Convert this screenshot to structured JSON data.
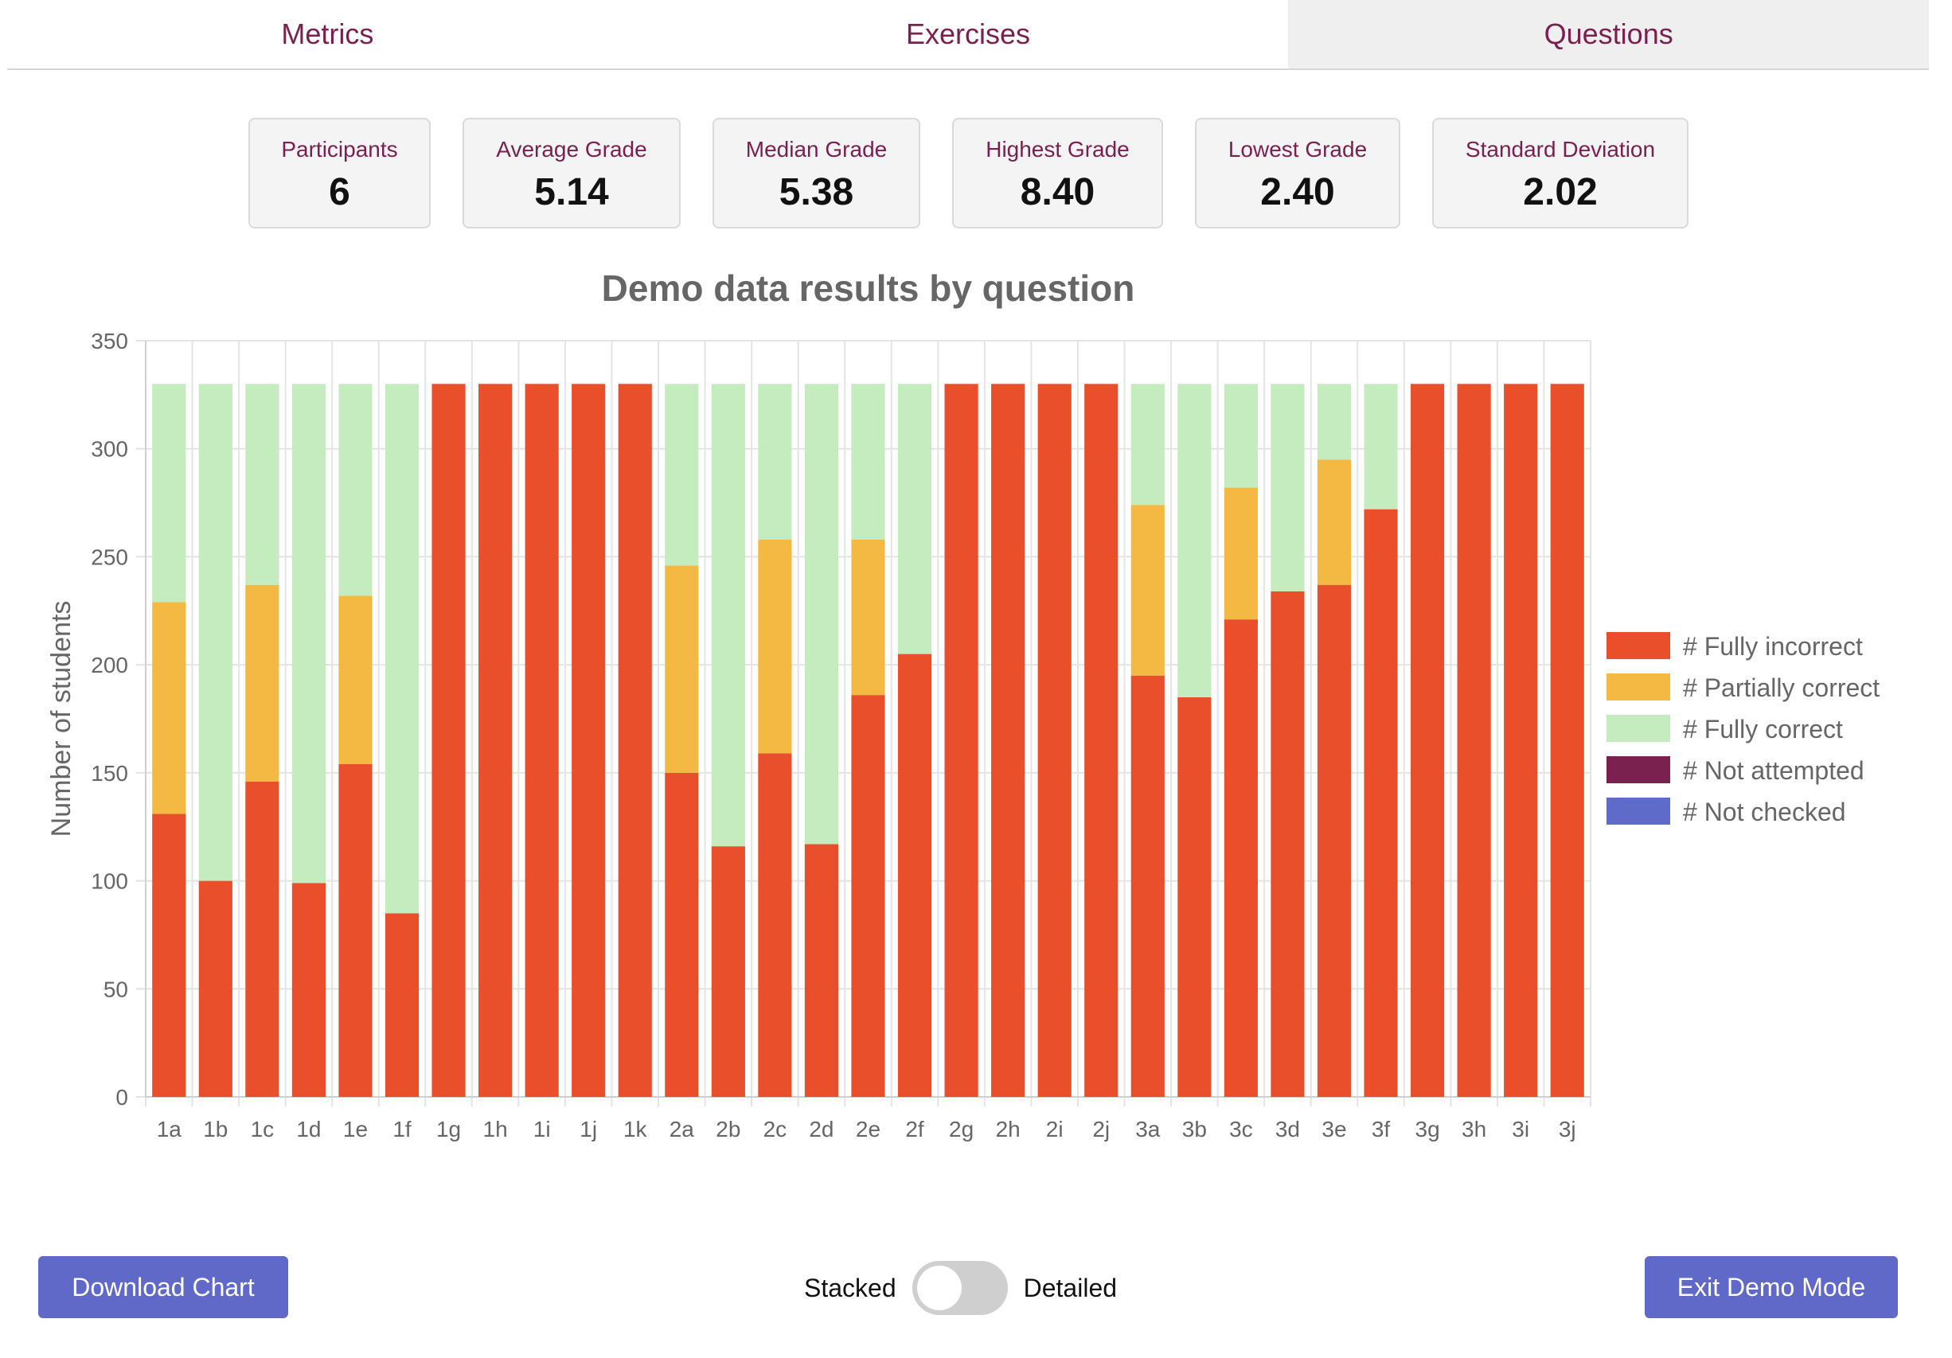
{
  "tabs": [
    {
      "label": "Metrics",
      "active": false
    },
    {
      "label": "Exercises",
      "active": false
    },
    {
      "label": "Questions",
      "active": true
    }
  ],
  "stats": [
    {
      "label": "Participants",
      "value": "6"
    },
    {
      "label": "Average Grade",
      "value": "5.14"
    },
    {
      "label": "Median Grade",
      "value": "5.38"
    },
    {
      "label": "Highest Grade",
      "value": "8.40"
    },
    {
      "label": "Lowest Grade",
      "value": "2.40"
    },
    {
      "label": "Standard Deviation",
      "value": "2.02"
    }
  ],
  "chart_data": {
    "type": "bar",
    "stacked": true,
    "title": "Demo data results by question",
    "xlabel": "",
    "ylabel": "Number of students",
    "ylim": [
      0,
      350
    ],
    "yticks": [
      0,
      50,
      100,
      150,
      200,
      250,
      300,
      350
    ],
    "grid": true,
    "legend_position": "right",
    "categories": [
      "1a",
      "1b",
      "1c",
      "1d",
      "1e",
      "1f",
      "1g",
      "1h",
      "1i",
      "1j",
      "1k",
      "2a",
      "2b",
      "2c",
      "2d",
      "2e",
      "2f",
      "2g",
      "2h",
      "2i",
      "2j",
      "3a",
      "3b",
      "3c",
      "3d",
      "3e",
      "3f",
      "3g",
      "3h",
      "3i",
      "3j"
    ],
    "series": [
      {
        "name": "# Fully incorrect",
        "color": "#e84f2a",
        "values": [
          131,
          100,
          146,
          99,
          154,
          85,
          330,
          330,
          330,
          330,
          330,
          150,
          116,
          159,
          117,
          186,
          205,
          330,
          330,
          330,
          330,
          195,
          185,
          221,
          234,
          237,
          272,
          330,
          330,
          330,
          330
        ]
      },
      {
        "name": "# Partially correct",
        "color": "#f4b942",
        "values": [
          98,
          0,
          91,
          0,
          78,
          0,
          0,
          0,
          0,
          0,
          0,
          96,
          0,
          99,
          0,
          72,
          0,
          0,
          0,
          0,
          0,
          79,
          0,
          61,
          0,
          58,
          0,
          0,
          0,
          0,
          0
        ]
      },
      {
        "name": "# Fully correct",
        "color": "#c5ecbe",
        "values": [
          101,
          230,
          93,
          231,
          98,
          245,
          0,
          0,
          0,
          0,
          0,
          84,
          214,
          72,
          213,
          72,
          125,
          0,
          0,
          0,
          0,
          56,
          145,
          48,
          96,
          35,
          58,
          0,
          0,
          0,
          0
        ]
      },
      {
        "name": "# Not attempted",
        "color": "#7b2150",
        "values": [
          0,
          0,
          0,
          0,
          0,
          0,
          0,
          0,
          0,
          0,
          0,
          0,
          0,
          0,
          0,
          0,
          0,
          0,
          0,
          0,
          0,
          0,
          0,
          0,
          0,
          0,
          0,
          0,
          0,
          0,
          0
        ]
      },
      {
        "name": "# Not checked",
        "color": "#5f6bc8",
        "values": [
          0,
          0,
          0,
          0,
          0,
          0,
          0,
          0,
          0,
          0,
          0,
          0,
          0,
          0,
          0,
          0,
          0,
          0,
          0,
          0,
          0,
          0,
          0,
          0,
          0,
          0,
          0,
          0,
          0,
          0,
          0
        ]
      }
    ]
  },
  "controls": {
    "download_label": "Download Chart",
    "toggle_left_label": "Stacked",
    "toggle_right_label": "Detailed",
    "toggle_on": false,
    "exit_label": "Exit Demo Mode"
  }
}
